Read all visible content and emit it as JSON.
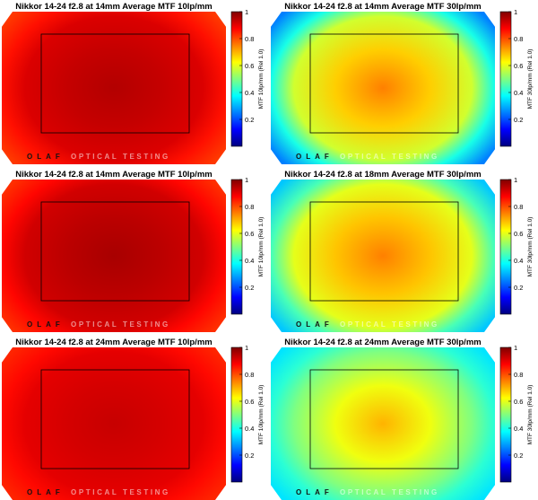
{
  "brand": {
    "logo_text": "OLAF",
    "tagline": "OPTICAL TESTING"
  },
  "chart_data": [
    {
      "type": "heatmap",
      "title": "Nikkor 14-24 f2.8 at 14mm Average MTF 10lp/mm",
      "colorbar_label": "MTF 10lp/mm (Rel 1.0)",
      "colorbar_ticks": [
        "0.2",
        "0.4",
        "0.6",
        "0.8",
        "1"
      ],
      "clim": [
        0,
        1
      ],
      "colormap": "jet",
      "frame_outline": true,
      "mtf_center": 0.95,
      "mtf_frame_corner": 0.91,
      "mtf_image_corner": 0.82
    },
    {
      "type": "heatmap",
      "title": "Nikkor 14-24 f2.8 at 14mm Average MTF 30lp/mm",
      "colorbar_label": "MTF 30lp/mm (Rel 1.0)",
      "colorbar_ticks": [
        "0.2",
        "0.4",
        "0.6",
        "0.8",
        "1"
      ],
      "clim": [
        0,
        1
      ],
      "colormap": "jet",
      "frame_outline": true,
      "mtf_center": 0.75,
      "mtf_frame_corner": 0.58,
      "mtf_image_corner": 0.25
    },
    {
      "type": "heatmap",
      "title": "Nikkor 14-24 f2.8 at 14mm Average MTF 10lp/mm",
      "colorbar_label": "MTF 10lp/mm (Rel 1.0)",
      "colorbar_ticks": [
        "0.2",
        "0.4",
        "0.6",
        "0.8",
        "1"
      ],
      "clim": [
        0,
        1
      ],
      "colormap": "jet",
      "frame_outline": true,
      "mtf_center": 0.96,
      "mtf_frame_corner": 0.92,
      "mtf_image_corner": 0.83
    },
    {
      "type": "heatmap",
      "title": "Nikkor 14-24 f2.8 at 18mm Average MTF 30lp/mm",
      "colorbar_label": "MTF 30lp/mm (Rel 1.0)",
      "colorbar_ticks": [
        "0.2",
        "0.4",
        "0.6",
        "0.8",
        "1"
      ],
      "clim": [
        0,
        1
      ],
      "colormap": "jet",
      "frame_outline": true,
      "mtf_center": 0.75,
      "mtf_frame_corner": 0.6,
      "mtf_image_corner": 0.32
    },
    {
      "type": "heatmap",
      "title": "Nikkor 14-24 f2.8 at 24mm Average MTF 10lp/mm",
      "colorbar_label": "MTF 10lp/mm (Rel 1.0)",
      "colorbar_ticks": [
        "0.2",
        "0.4",
        "0.6",
        "0.8",
        "1"
      ],
      "clim": [
        0,
        1
      ],
      "colormap": "jet",
      "frame_outline": true,
      "mtf_center": 0.93,
      "mtf_frame_corner": 0.9,
      "mtf_image_corner": 0.84
    },
    {
      "type": "heatmap",
      "title": "Nikkor 14-24 f2.8 at 24mm Average MTF 30lp/mm",
      "colorbar_label": "MTF 30lp/mm (Rel 1.0)",
      "colorbar_ticks": [
        "0.2",
        "0.4",
        "0.6",
        "0.8",
        "1"
      ],
      "clim": [
        0,
        1
      ],
      "colormap": "jet",
      "frame_outline": true,
      "mtf_center": 0.7,
      "mtf_frame_corner": 0.5,
      "mtf_image_corner": 0.35
    }
  ]
}
